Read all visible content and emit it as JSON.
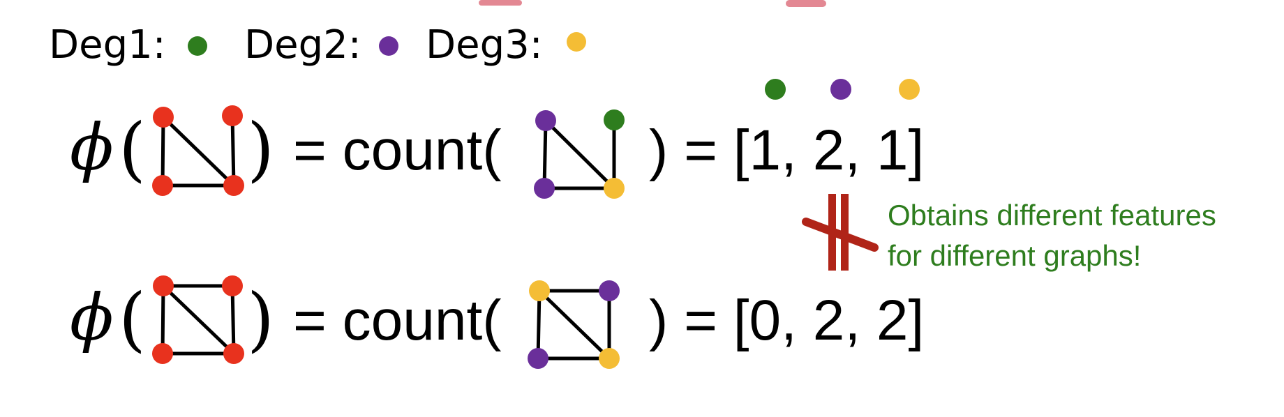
{
  "legend": {
    "deg1": {
      "label": "Deg1:",
      "color": "#2e7d1e"
    },
    "deg2": {
      "label": "Deg2:",
      "color": "#6a2f9a"
    },
    "deg3": {
      "label": "Deg3:",
      "color": "#f4bd35"
    }
  },
  "equation1": {
    "phi": "ϕ",
    "open_paren": "(",
    "close_paren": ")",
    "equals_count": "= count(",
    "result": ") = [1, 2, 1]"
  },
  "equation2": {
    "phi": "ϕ",
    "open_paren": "(",
    "close_paren": ")",
    "equals_count": "= count(",
    "result": ") = [0, 2, 2]"
  },
  "note": {
    "line1": "Obtains different features",
    "line2": "for different graphs!",
    "color": "#2e7d1e"
  },
  "colors": {
    "input_node": "#e8321e",
    "not_equal": "#b02418",
    "edge": "#000000"
  }
}
